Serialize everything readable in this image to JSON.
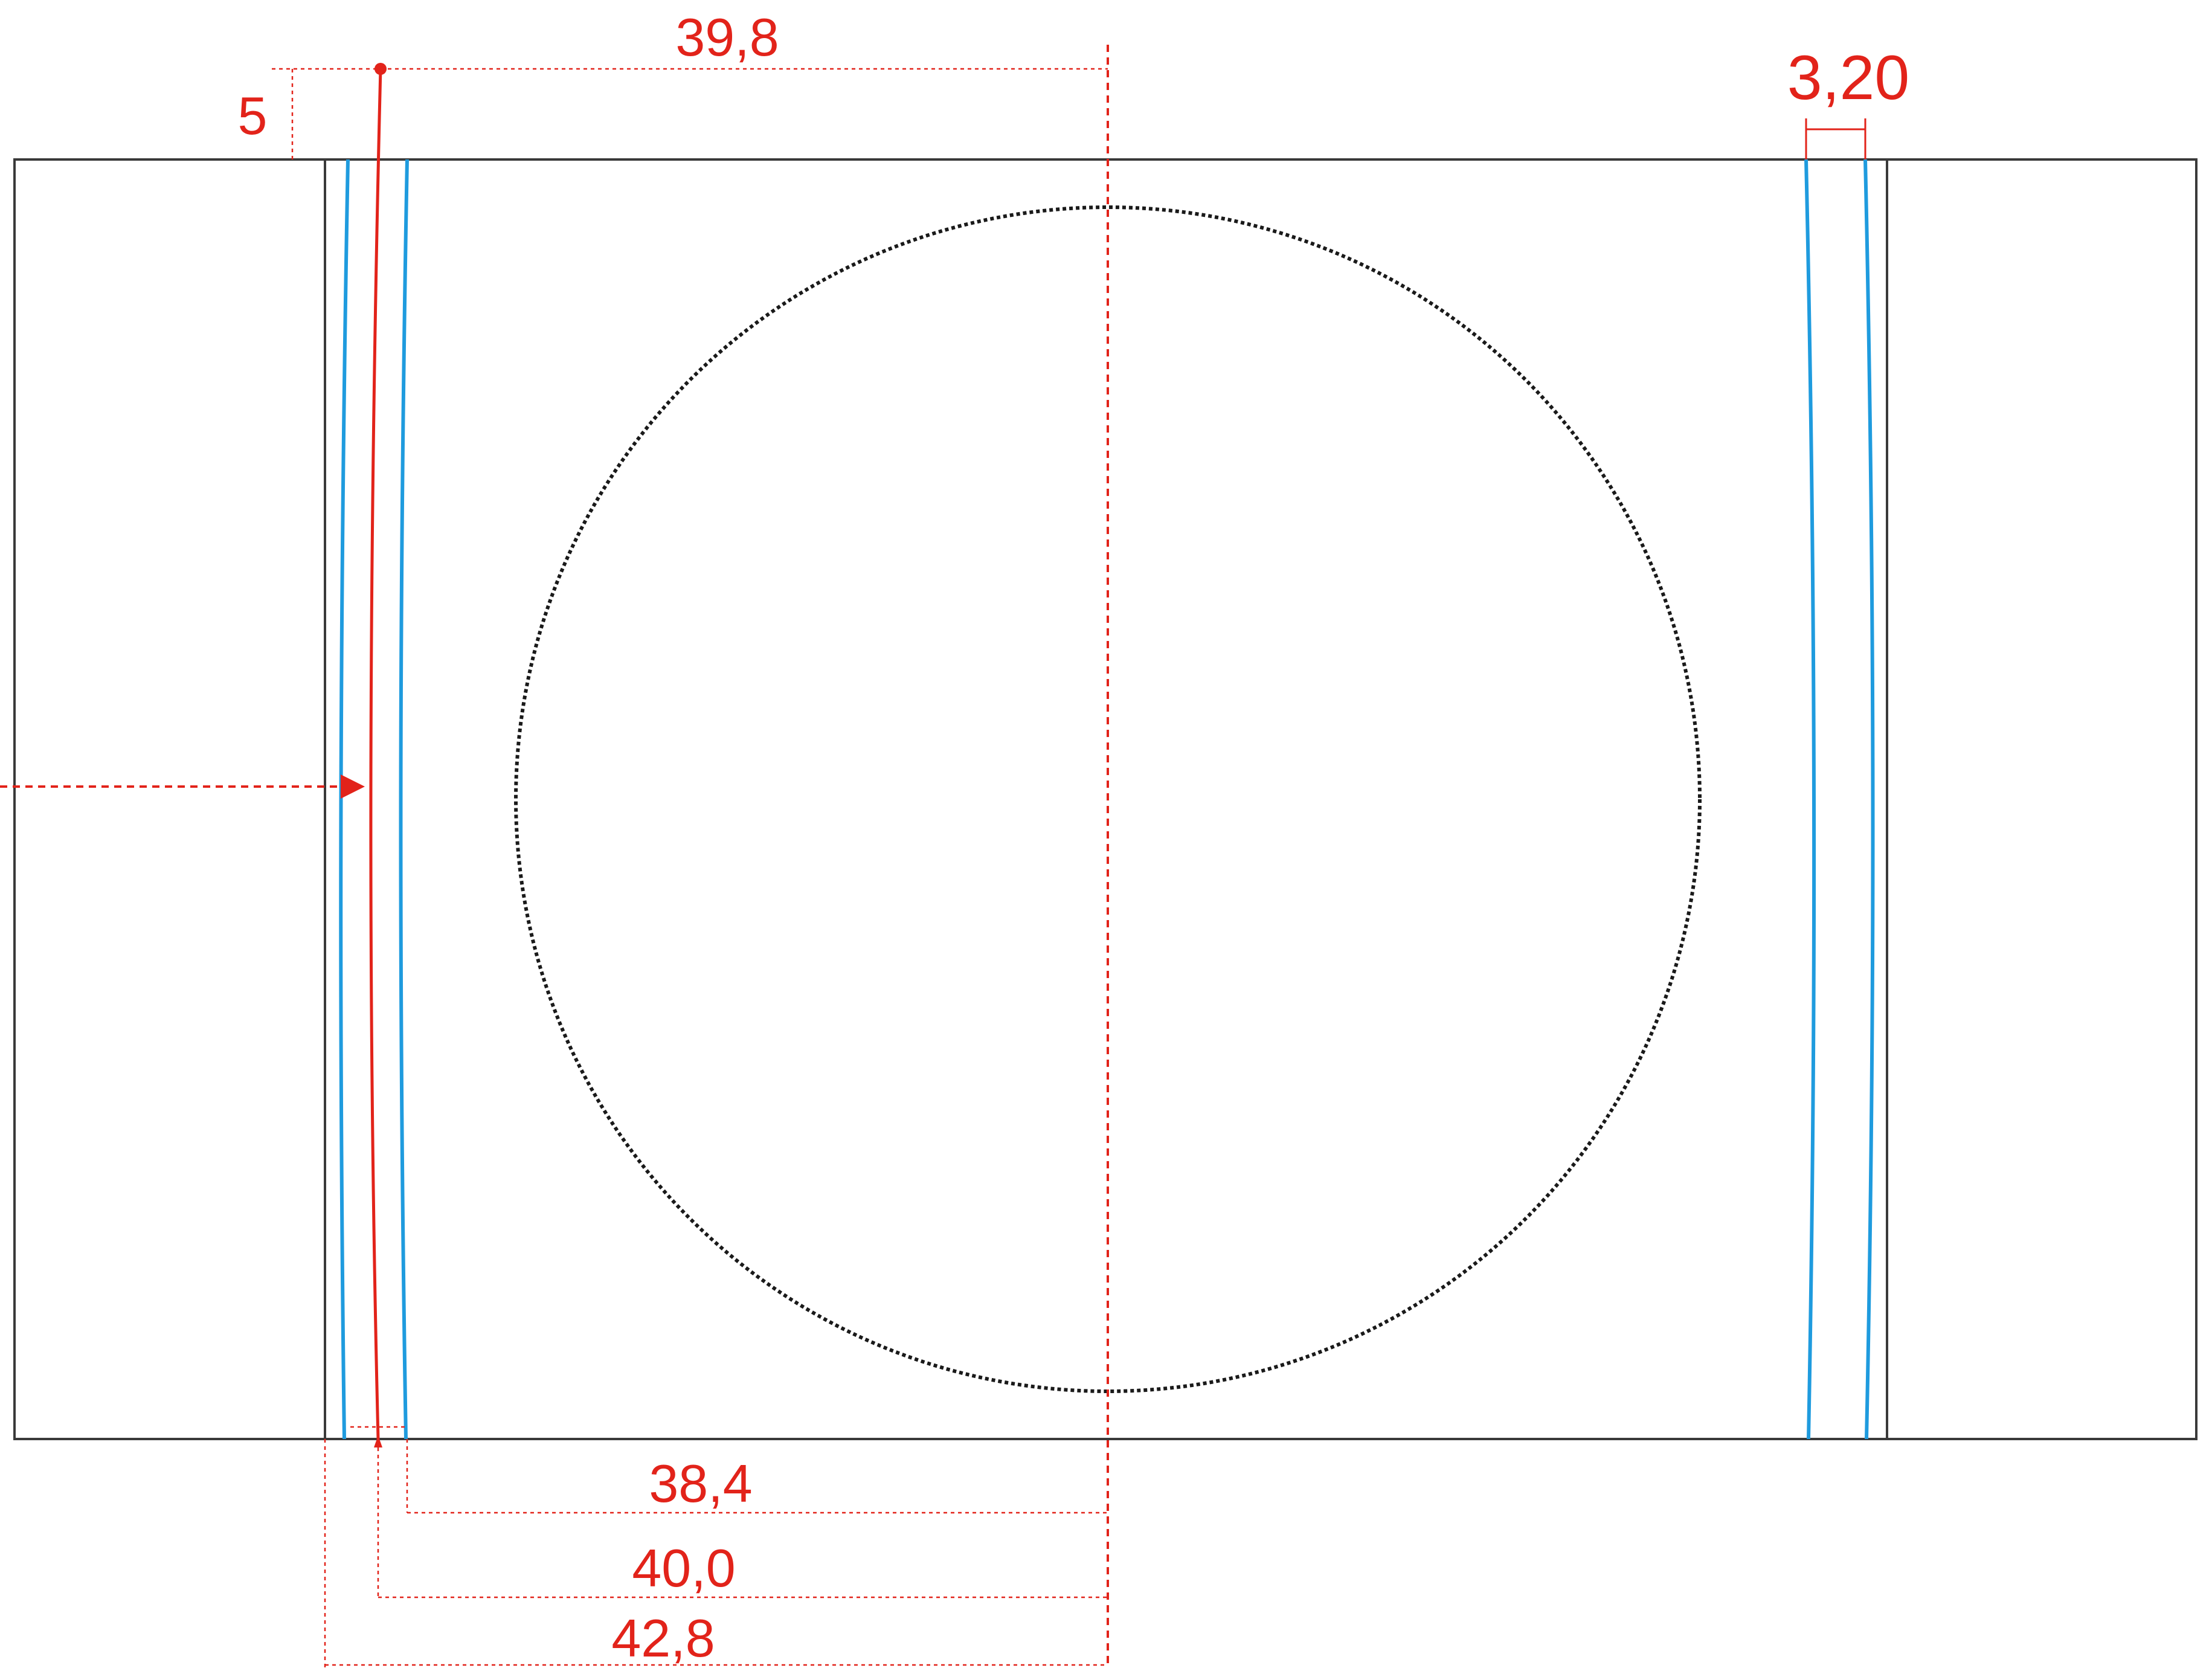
{
  "dimensions": {
    "top_offset": "39,8",
    "edge_offset": "5",
    "slot_width": "3,20",
    "inner_distance": "38,4",
    "center_distance": "40,0",
    "outer_distance": "42,8"
  },
  "colors": {
    "annotation": "#e2231a",
    "slot_line": "#1f9bde",
    "outline": "#3a3a3a"
  }
}
